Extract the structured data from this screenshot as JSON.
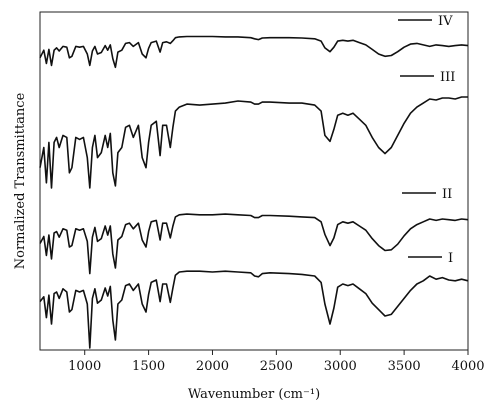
{
  "chart_data": {
    "type": "line",
    "title": "",
    "xlabel": "Wavenumber (cm⁻¹)",
    "ylabel": "Normalized Transmittance",
    "xlim": [
      650,
      4000
    ],
    "xticks": [
      1000,
      1500,
      2000,
      2500,
      3000,
      3500,
      4000
    ],
    "x_tick_labels": [
      "1000",
      "1500",
      "2000",
      "2500",
      "3000",
      "3500",
      "4000"
    ],
    "y_ticks_shown": false,
    "grid": false,
    "legend_placement": "right, one entry beside each trace",
    "x": [
      650,
      680,
      700,
      720,
      740,
      760,
      780,
      800,
      830,
      860,
      880,
      900,
      930,
      960,
      990,
      1020,
      1040,
      1060,
      1080,
      1100,
      1130,
      1160,
      1180,
      1200,
      1220,
      1240,
      1260,
      1290,
      1320,
      1350,
      1380,
      1420,
      1450,
      1480,
      1500,
      1520,
      1560,
      1590,
      1610,
      1640,
      1670,
      1690,
      1710,
      1740,
      1800,
      1900,
      2000,
      2100,
      2200,
      2300,
      2330,
      2360,
      2390,
      2450,
      2600,
      2700,
      2800,
      2850,
      2880,
      2920,
      2950,
      2980,
      3020,
      3060,
      3100,
      3150,
      3200,
      3250,
      3300,
      3350,
      3400,
      3450,
      3500,
      3550,
      3600,
      3650,
      3700,
      3750,
      3800,
      3850,
      3900,
      3950,
      4000
    ],
    "series": [
      {
        "name": "I",
        "values": [
          0.58,
          0.64,
          0.38,
          0.66,
          0.3,
          0.68,
          0.7,
          0.62,
          0.74,
          0.7,
          0.45,
          0.48,
          0.72,
          0.7,
          0.72,
          0.55,
          0.0,
          0.62,
          0.74,
          0.56,
          0.6,
          0.75,
          0.65,
          0.77,
          0.35,
          0.1,
          0.55,
          0.6,
          0.78,
          0.8,
          0.72,
          0.8,
          0.55,
          0.45,
          0.67,
          0.82,
          0.85,
          0.58,
          0.8,
          0.8,
          0.57,
          0.75,
          0.91,
          0.95,
          0.96,
          0.96,
          0.95,
          0.96,
          0.95,
          0.94,
          0.9,
          0.89,
          0.93,
          0.94,
          0.93,
          0.92,
          0.9,
          0.82,
          0.55,
          0.3,
          0.5,
          0.76,
          0.8,
          0.78,
          0.8,
          0.74,
          0.68,
          0.56,
          0.48,
          0.4,
          0.42,
          0.52,
          0.62,
          0.72,
          0.8,
          0.84,
          0.9,
          0.86,
          0.88,
          0.85,
          0.84,
          0.86,
          0.84
        ]
      },
      {
        "name": "II",
        "values": [
          0.55,
          0.65,
          0.38,
          0.67,
          0.33,
          0.7,
          0.72,
          0.64,
          0.76,
          0.74,
          0.5,
          0.52,
          0.76,
          0.74,
          0.76,
          0.58,
          0.12,
          0.64,
          0.78,
          0.58,
          0.62,
          0.8,
          0.67,
          0.8,
          0.4,
          0.2,
          0.6,
          0.65,
          0.82,
          0.84,
          0.76,
          0.84,
          0.6,
          0.5,
          0.72,
          0.86,
          0.88,
          0.6,
          0.84,
          0.84,
          0.63,
          0.8,
          0.93,
          0.96,
          0.97,
          0.96,
          0.96,
          0.97,
          0.96,
          0.95,
          0.92,
          0.92,
          0.95,
          0.95,
          0.94,
          0.93,
          0.92,
          0.86,
          0.68,
          0.52,
          0.63,
          0.82,
          0.86,
          0.84,
          0.86,
          0.8,
          0.74,
          0.62,
          0.52,
          0.45,
          0.46,
          0.54,
          0.66,
          0.76,
          0.82,
          0.86,
          0.9,
          0.88,
          0.9,
          0.89,
          0.88,
          0.9,
          0.89
        ]
      },
      {
        "name": "III",
        "values": [
          0.3,
          0.5,
          0.15,
          0.55,
          0.1,
          0.55,
          0.6,
          0.5,
          0.62,
          0.6,
          0.25,
          0.3,
          0.6,
          0.58,
          0.6,
          0.4,
          0.1,
          0.5,
          0.62,
          0.4,
          0.45,
          0.62,
          0.5,
          0.64,
          0.25,
          0.12,
          0.45,
          0.5,
          0.7,
          0.72,
          0.6,
          0.72,
          0.4,
          0.3,
          0.55,
          0.72,
          0.76,
          0.42,
          0.72,
          0.72,
          0.5,
          0.7,
          0.86,
          0.9,
          0.93,
          0.92,
          0.93,
          0.94,
          0.96,
          0.95,
          0.93,
          0.93,
          0.95,
          0.95,
          0.94,
          0.94,
          0.92,
          0.86,
          0.62,
          0.56,
          0.68,
          0.82,
          0.84,
          0.82,
          0.84,
          0.78,
          0.72,
          0.6,
          0.5,
          0.44,
          0.5,
          0.62,
          0.74,
          0.84,
          0.9,
          0.94,
          0.98,
          0.97,
          0.99,
          0.99,
          0.98,
          1.0,
          1.0
        ]
      },
      {
        "name": "IV",
        "values": [
          0.4,
          0.6,
          0.25,
          0.62,
          0.2,
          0.6,
          0.66,
          0.58,
          0.7,
          0.68,
          0.4,
          0.44,
          0.7,
          0.68,
          0.7,
          0.5,
          0.2,
          0.58,
          0.7,
          0.5,
          0.54,
          0.72,
          0.6,
          0.74,
          0.38,
          0.15,
          0.55,
          0.6,
          0.78,
          0.8,
          0.7,
          0.8,
          0.5,
          0.4,
          0.65,
          0.8,
          0.84,
          0.55,
          0.8,
          0.82,
          0.78,
          0.85,
          0.93,
          0.95,
          0.96,
          0.96,
          0.96,
          0.95,
          0.95,
          0.93,
          0.9,
          0.88,
          0.92,
          0.93,
          0.93,
          0.92,
          0.9,
          0.84,
          0.66,
          0.56,
          0.68,
          0.84,
          0.86,
          0.84,
          0.86,
          0.8,
          0.74,
          0.62,
          0.5,
          0.44,
          0.46,
          0.56,
          0.68,
          0.76,
          0.78,
          0.74,
          0.7,
          0.74,
          0.72,
          0.7,
          0.72,
          0.74,
          0.72
        ]
      }
    ]
  }
}
